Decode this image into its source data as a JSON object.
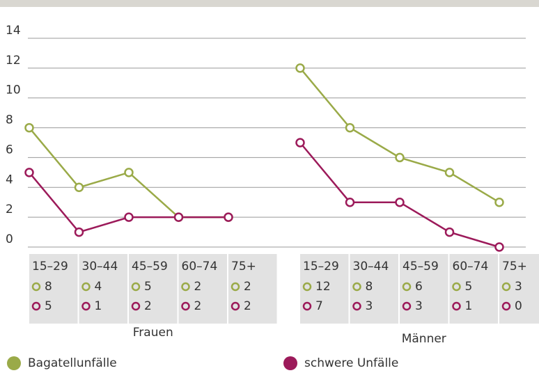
{
  "chart_data": {
    "type": "line",
    "ylim": [
      0,
      14
    ],
    "yticks": [
      0,
      2,
      4,
      6,
      8,
      10,
      12,
      14
    ],
    "grid": true,
    "series": [
      {
        "name": "Bagatellunfälle",
        "color": "#9aaa48"
      },
      {
        "name": "schwere Unfälle",
        "color": "#9c1a5a"
      }
    ],
    "panels": [
      {
        "name": "Frauen",
        "categories": [
          "15–29",
          "30–44",
          "45–59",
          "60–74",
          "75+"
        ],
        "values": [
          [
            8,
            4,
            5,
            2,
            2
          ],
          [
            5,
            1,
            2,
            2,
            2
          ]
        ]
      },
      {
        "name": "Männer",
        "categories": [
          "15–29",
          "30–44",
          "45–59",
          "60–74",
          "75+"
        ],
        "values": [
          [
            12,
            8,
            6,
            5,
            3
          ],
          [
            7,
            3,
            3,
            1,
            0
          ]
        ]
      }
    ]
  }
}
